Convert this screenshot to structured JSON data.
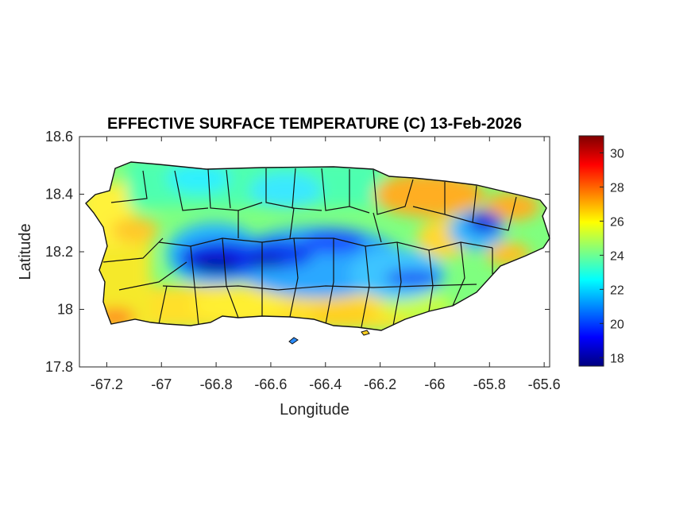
{
  "map": {
    "title": "EFFECTIVE SURFACE TEMPERATURE (C) 13-Feb-2026",
    "xlabel": "Longitude",
    "ylabel": "Latitude",
    "xlim": [
      -67.3,
      -65.58
    ],
    "ylim": [
      17.8,
      18.6
    ],
    "x_ticks": [
      -67.2,
      -67.0,
      -66.8,
      -66.6,
      -66.4,
      -66.2,
      -66.0,
      -65.8,
      -65.6
    ],
    "x_tick_labels": [
      "-67.2",
      "-67",
      "-66.8",
      "-66.6",
      "-66.4",
      "-66.2",
      "-66",
      "-65.8",
      "-65.6"
    ],
    "y_ticks": [
      17.8,
      18.0,
      18.2,
      18.4,
      18.6
    ],
    "y_tick_labels": [
      "17.8",
      "18",
      "18.2",
      "18.4",
      "18.6"
    ],
    "colorbar": {
      "colormap": "jet",
      "range": [
        17.5,
        31
      ],
      "ticks": [
        18,
        20,
        22,
        24,
        26,
        28,
        30
      ],
      "tick_labels": [
        "18",
        "20",
        "22",
        "24",
        "26",
        "28",
        "30"
      ]
    },
    "cold_zone_lat_lon": [
      [
        18.16,
        -66.78
      ],
      [
        18.17,
        -66.6
      ],
      [
        18.2,
        -66.45
      ],
      [
        18.18,
        -66.1
      ],
      [
        18.27,
        -65.8
      ]
    ],
    "colors": {
      "axis": "#262626",
      "boundary": "#111111",
      "background": "#ffffff"
    }
  }
}
